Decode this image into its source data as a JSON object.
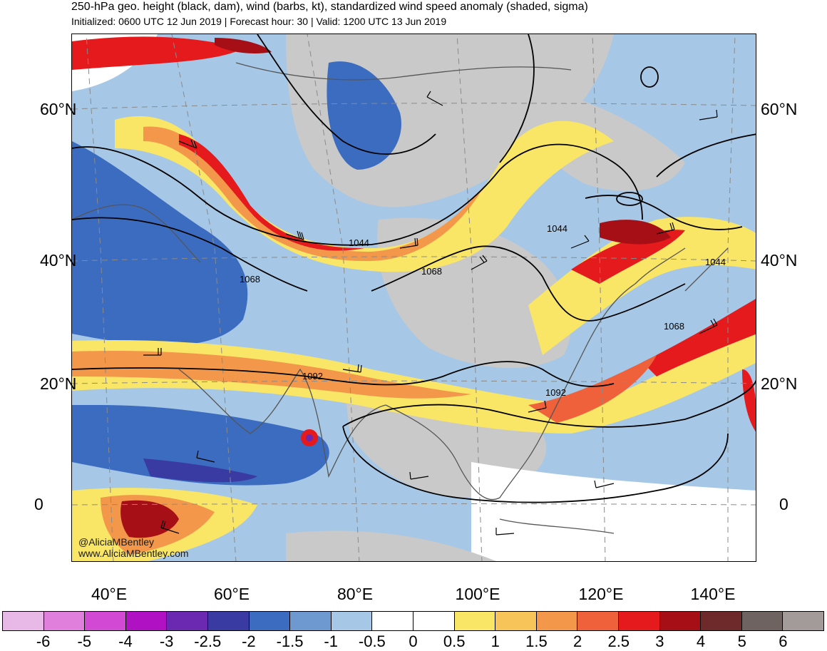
{
  "title": "250-hPa geo. height (black, dam), wind (barbs, kt), standardized wind speed anomaly (shaded, sigma)",
  "subtitle": "Initialized: 0600 UTC 12 Jun 2019 | Forecast hour: 30 | Valid: 1200 UTC 13 Jun 2019",
  "lat_labels": [
    "60°N",
    "40°N",
    "20°N",
    "0"
  ],
  "lon_labels": [
    "40°E",
    "60°E",
    "80°E",
    "100°E",
    "120°E",
    "140°E"
  ],
  "contour_labels": [
    "1044",
    "1068",
    "1092",
    "1044",
    "1068",
    "1092",
    "1044",
    "1068"
  ],
  "credits": {
    "handle": "@AliciaMBentley",
    "site": "www.AliciaMBentley.com"
  },
  "colorbar": {
    "ticks": [
      "-6",
      "-5",
      "-4",
      "-3",
      "-2.5",
      "-2",
      "-1.5",
      "-1",
      "-0.5",
      "0",
      "0.5",
      "1",
      "1.5",
      "2",
      "2.5",
      "3",
      "4",
      "5",
      "6"
    ],
    "colors": [
      "#e8b9e6",
      "#e07fdc",
      "#d24ad3",
      "#b011c2",
      "#6a29b0",
      "#3a3aa3",
      "#3c6cc0",
      "#6d98d0",
      "#a6c8e6",
      "#ffffff",
      "#ffffff",
      "#f9e566",
      "#f6c459",
      "#f3984a",
      "#ef613b",
      "#e41a1c",
      "#a50f15",
      "#6e2a2a",
      "#6f6361",
      "#a39a9a"
    ]
  },
  "palette": {
    "land_gray": "#c9c9c9",
    "coast": "#555555",
    "contour": "#000000",
    "grid": "#8a8a8a"
  }
}
